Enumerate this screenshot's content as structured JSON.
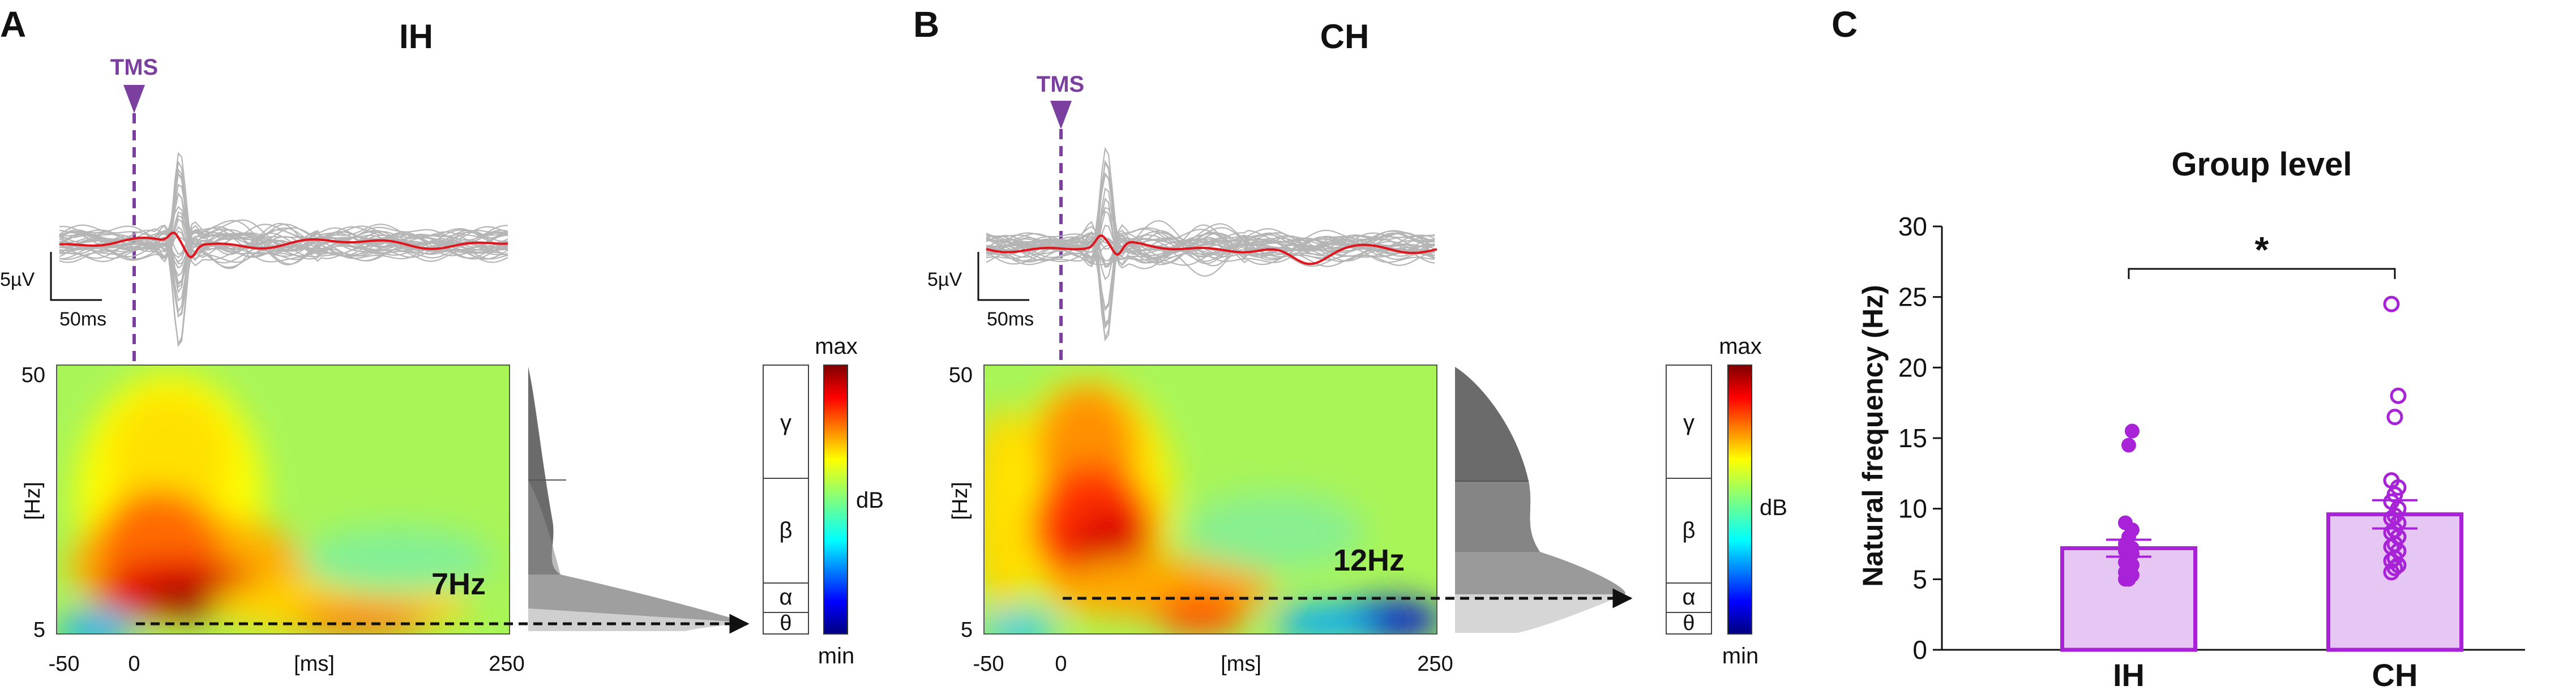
{
  "figure": {
    "panelA": {
      "letter": "A",
      "title": "IH",
      "tms_label": "TMS",
      "scale": {
        "amplitude": "5µV",
        "time": "50ms"
      },
      "xlabel": "[ms]",
      "ylabel": "[Hz]",
      "xticks": [
        "-50",
        "0",
        "250"
      ],
      "yticks": [
        "50",
        "5"
      ],
      "natural_freq_label": "7Hz",
      "colorbar": {
        "max": "max",
        "min": "min",
        "unit": "dB"
      },
      "bands": [
        "γ",
        "β",
        "α",
        "θ"
      ]
    },
    "panelB": {
      "letter": "B",
      "title": "CH",
      "tms_label": "TMS",
      "scale": {
        "amplitude": "5µV",
        "time": "50ms"
      },
      "xlabel": "[ms]",
      "ylabel": "[Hz]",
      "xticks": [
        "-50",
        "0",
        "250"
      ],
      "yticks": [
        "50",
        "5"
      ],
      "natural_freq_label": "12Hz",
      "colorbar": {
        "max": "max",
        "min": "min",
        "unit": "dB"
      },
      "bands": [
        "γ",
        "β",
        "α",
        "θ"
      ]
    },
    "panelC": {
      "letter": "C",
      "significance": "*"
    },
    "colors": {
      "tms": "#7B3FA0",
      "bar_fill": "#E6C6F2",
      "bar_edge": "#A823D8",
      "dot": "#A823D8",
      "trace_gray": "#b5b5b5",
      "trace_mean": "#e0141c"
    }
  },
  "chart_data": {
    "type": "bar",
    "title": "Group level",
    "xlabel": "",
    "ylabel": "Natural frequency (Hz)",
    "categories": [
      "IH",
      "CH"
    ],
    "values": [
      7.2,
      9.6
    ],
    "sem": [
      0.6,
      1.0
    ],
    "ylim": [
      0,
      30
    ],
    "yticks": [
      0,
      5,
      10,
      15,
      20,
      25,
      30
    ],
    "points": {
      "IH": [
        5,
        5,
        5.3,
        5.5,
        5.8,
        6,
        6.2,
        6.5,
        6.8,
        7,
        7,
        7.2,
        7.5,
        8,
        8.5,
        9,
        14.5,
        15.5
      ],
      "CH": [
        5.5,
        5.8,
        6,
        6.3,
        6.5,
        7,
        7.3,
        7.5,
        8,
        8.3,
        8.5,
        9,
        9.3,
        9.5,
        10,
        10.5,
        11,
        11.5,
        12,
        16.5,
        18,
        24.5
      ]
    },
    "grid": false
  }
}
